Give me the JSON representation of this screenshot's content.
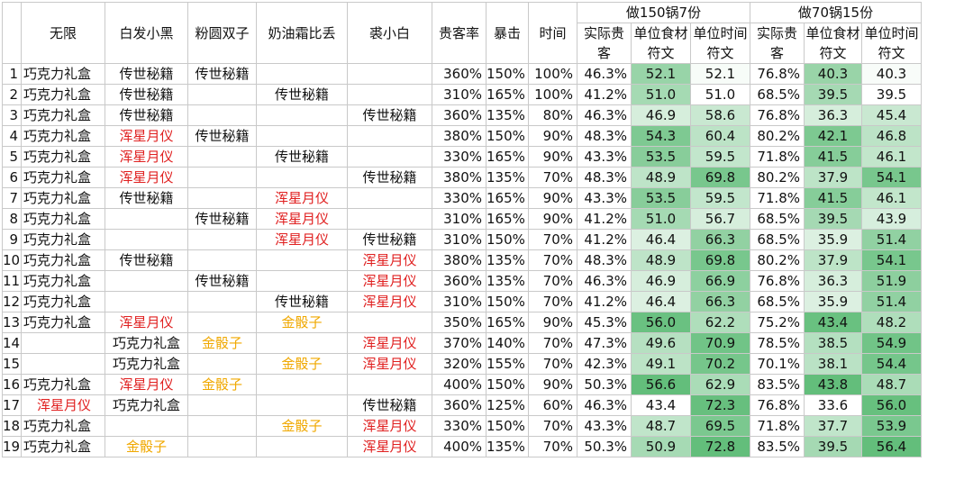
{
  "header": {
    "cols": [
      "无限",
      "白发小黑",
      "粉圆双子",
      "奶油霜比丢",
      "裘小白",
      "贵客率",
      "暴击",
      "时间"
    ],
    "group150": "做150锅7份",
    "group70": "做70锅15份",
    "sub": [
      "实际贵客",
      "单位食材符文",
      "单位时间符文",
      "实际贵客",
      "单位食材符文",
      "单位时间符文"
    ]
  },
  "colors": {
    "red": "#e02020",
    "gold": "#f0a800"
  },
  "rows": [
    {
      "i": "1",
      "c": [
        "巧克力礼盒",
        "传世秘籍",
        "传世秘籍",
        "",
        "",
        ""
      ],
      "rate": "360%",
      "crit": "150%",
      "time": "100%",
      "v": [
        "46.3%",
        "52.1",
        "52.1",
        "76.8%",
        "40.3",
        "40.3"
      ]
    },
    {
      "i": "2",
      "c": [
        "巧克力礼盒",
        "传世秘籍",
        "",
        "传世秘籍",
        "",
        ""
      ],
      "rate": "310%",
      "crit": "165%",
      "time": "100%",
      "v": [
        "41.2%",
        "51.0",
        "51.0",
        "68.5%",
        "39.5",
        "39.5"
      ]
    },
    {
      "i": "3",
      "c": [
        "巧克力礼盒",
        "传世秘籍",
        "",
        "",
        "传世秘籍",
        ""
      ],
      "rate": "360%",
      "crit": "135%",
      "time": "80%",
      "v": [
        "46.3%",
        "46.9",
        "58.6",
        "76.8%",
        "36.3",
        "45.4"
      ]
    },
    {
      "i": "4",
      "c": [
        "巧克力礼盒",
        "浑星月仪",
        "传世秘籍",
        "",
        "",
        ""
      ],
      "rate": "380%",
      "crit": "150%",
      "time": "90%",
      "v": [
        "48.3%",
        "54.3",
        "60.4",
        "80.2%",
        "42.1",
        "46.8"
      ]
    },
    {
      "i": "5",
      "c": [
        "巧克力礼盒",
        "浑星月仪",
        "",
        "传世秘籍",
        "",
        ""
      ],
      "rate": "330%",
      "crit": "165%",
      "time": "90%",
      "v": [
        "43.3%",
        "53.5",
        "59.5",
        "71.8%",
        "41.5",
        "46.1"
      ]
    },
    {
      "i": "6",
      "c": [
        "巧克力礼盒",
        "浑星月仪",
        "",
        "",
        "传世秘籍",
        ""
      ],
      "rate": "380%",
      "crit": "135%",
      "time": "70%",
      "v": [
        "48.3%",
        "48.9",
        "69.8",
        "80.2%",
        "37.9",
        "54.1"
      ]
    },
    {
      "i": "7",
      "c": [
        "巧克力礼盒",
        "传世秘籍",
        "",
        "浑星月仪",
        "",
        ""
      ],
      "rate": "330%",
      "crit": "165%",
      "time": "90%",
      "v": [
        "43.3%",
        "53.5",
        "59.5",
        "71.8%",
        "41.5",
        "46.1"
      ]
    },
    {
      "i": "8",
      "c": [
        "巧克力礼盒",
        "",
        "传世秘籍",
        "浑星月仪",
        "",
        ""
      ],
      "rate": "310%",
      "crit": "165%",
      "time": "90%",
      "v": [
        "41.2%",
        "51.0",
        "56.7",
        "68.5%",
        "39.5",
        "43.9"
      ]
    },
    {
      "i": "9",
      "c": [
        "巧克力礼盒",
        "",
        "",
        "浑星月仪",
        "传世秘籍",
        ""
      ],
      "rate": "310%",
      "crit": "150%",
      "time": "70%",
      "v": [
        "41.2%",
        "46.4",
        "66.3",
        "68.5%",
        "35.9",
        "51.4"
      ]
    },
    {
      "i": "10",
      "c": [
        "巧克力礼盒",
        "传世秘籍",
        "",
        "",
        "浑星月仪",
        ""
      ],
      "rate": "380%",
      "crit": "135%",
      "time": "70%",
      "v": [
        "48.3%",
        "48.9",
        "69.8",
        "80.2%",
        "37.9",
        "54.1"
      ]
    },
    {
      "i": "11",
      "c": [
        "巧克力礼盒",
        "",
        "传世秘籍",
        "",
        "浑星月仪",
        ""
      ],
      "rate": "360%",
      "crit": "135%",
      "time": "70%",
      "v": [
        "46.3%",
        "46.9",
        "66.9",
        "76.8%",
        "36.3",
        "51.9"
      ]
    },
    {
      "i": "12",
      "c": [
        "巧克力礼盒",
        "",
        "",
        "传世秘籍",
        "浑星月仪",
        ""
      ],
      "rate": "310%",
      "crit": "150%",
      "time": "70%",
      "v": [
        "41.2%",
        "46.4",
        "66.3",
        "68.5%",
        "35.9",
        "51.4"
      ]
    },
    {
      "i": "13",
      "c": [
        "巧克力礼盒",
        "浑星月仪",
        "",
        "金骰子",
        "",
        ""
      ],
      "rate": "350%",
      "crit": "165%",
      "time": "90%",
      "v": [
        "45.3%",
        "56.0",
        "62.2",
        "75.2%",
        "43.4",
        "48.2"
      ]
    },
    {
      "i": "14",
      "c": [
        "",
        "巧克力礼盒",
        "金骰子",
        "",
        "浑星月仪",
        ""
      ],
      "rate": "370%",
      "crit": "140%",
      "time": "70%",
      "v": [
        "47.3%",
        "49.6",
        "70.9",
        "78.5%",
        "38.5",
        "54.9"
      ]
    },
    {
      "i": "15",
      "c": [
        "",
        "巧克力礼盒",
        "",
        "金骰子",
        "浑星月仪",
        ""
      ],
      "rate": "320%",
      "crit": "155%",
      "time": "70%",
      "v": [
        "42.3%",
        "49.1",
        "70.2",
        "70.1%",
        "38.1",
        "54.4"
      ]
    },
    {
      "i": "16",
      "c": [
        "巧克力礼盒",
        "浑星月仪",
        "金骰子",
        "",
        "",
        ""
      ],
      "rate": "400%",
      "crit": "150%",
      "time": "90%",
      "v": [
        "50.3%",
        "56.6",
        "62.9",
        "83.5%",
        "43.8",
        "48.7"
      ]
    },
    {
      "i": "17",
      "c": [
        "浑星月仪",
        "巧克力礼盒",
        "",
        "",
        "传世秘籍",
        ""
      ],
      "rate": "360%",
      "crit": "125%",
      "time": "60%",
      "v": [
        "46.3%",
        "43.4",
        "72.3",
        "76.8%",
        "33.6",
        "56.0"
      ]
    },
    {
      "i": "18",
      "c": [
        "巧克力礼盒",
        "",
        "",
        "金骰子",
        "浑星月仪",
        ""
      ],
      "rate": "330%",
      "crit": "150%",
      "time": "70%",
      "v": [
        "43.3%",
        "48.7",
        "69.5",
        "71.8%",
        "37.7",
        "53.9"
      ]
    },
    {
      "i": "19",
      "c": [
        "巧克力礼盒",
        "金骰子",
        "",
        "",
        "浑星月仪",
        ""
      ],
      "rate": "400%",
      "crit": "135%",
      "time": "70%",
      "v": [
        "50.3%",
        "50.9",
        "72.8",
        "83.5%",
        "39.5",
        "56.4"
      ]
    }
  ]
}
